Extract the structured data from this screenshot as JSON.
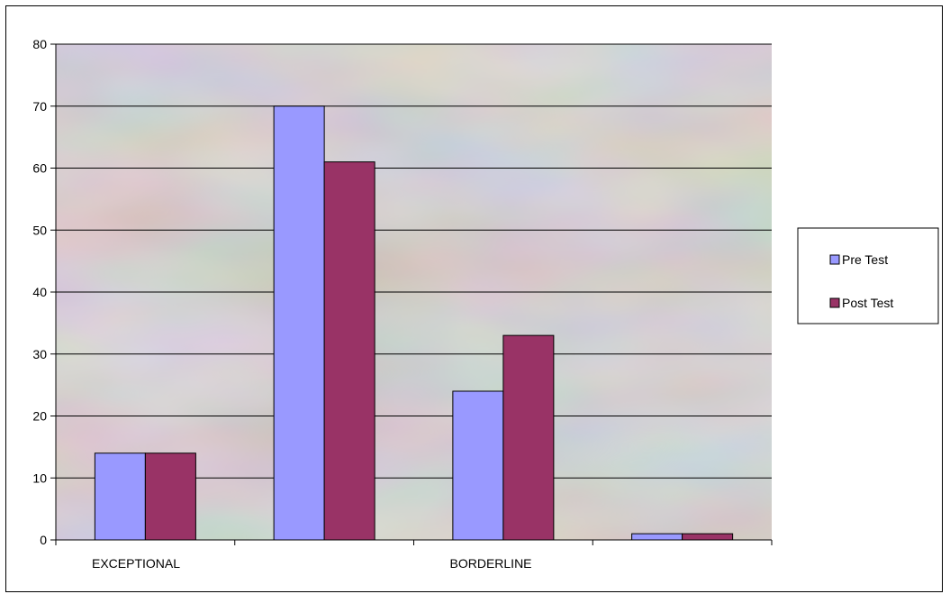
{
  "chart_data": {
    "type": "bar",
    "title": "",
    "xlabel": "",
    "ylabel": "",
    "categories": [
      "EXCEPTIONAL",
      "",
      "BORDERLINE",
      ""
    ],
    "series": [
      {
        "name": "Pre Test",
        "color": "#9999ff",
        "values": [
          14,
          70,
          24,
          1
        ]
      },
      {
        "name": "Post Test",
        "color": "#993366",
        "values": [
          14,
          61,
          33,
          1
        ]
      }
    ],
    "ylim": [
      0,
      80
    ],
    "yticks": [
      0,
      10,
      20,
      30,
      40,
      50,
      60,
      70,
      80
    ],
    "grid": true,
    "legend": "right"
  }
}
